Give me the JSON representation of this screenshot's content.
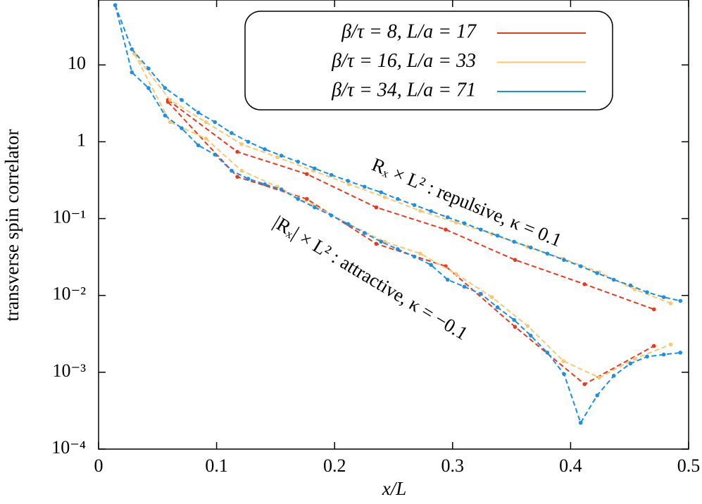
{
  "chart_data": {
    "type": "line",
    "log_y": true,
    "xlabel": "x/L",
    "ylabel": "transverse spin correlator",
    "xlim": [
      0,
      0.5
    ],
    "xticks": [
      0,
      0.1,
      0.2,
      0.3,
      0.4,
      0.5
    ],
    "ylim": [
      0.0001,
      70
    ],
    "yticks": [
      {
        "value": 0.0001,
        "label": "10⁻⁴"
      },
      {
        "value": 0.001,
        "label": "10⁻³"
      },
      {
        "value": 0.01,
        "label": "10⁻²"
      },
      {
        "value": 0.1,
        "label": "10⁻¹"
      },
      1,
      10
    ],
    "legend": "top-center",
    "annotations": [
      "Rₓ × L² : repulsive,   κ = 0.1",
      "|Rₓ| × L² : attractive,   κ = −0.1"
    ],
    "series": [
      {
        "name": "β/τ = 8,   L/a = 17",
        "color": "#e8391f",
        "repulsive": {
          "x": [
            0.0588,
            0.1176,
            0.1765,
            0.2353,
            0.2941,
            0.3529,
            0.4118,
            0.4706
          ],
          "values": [
            3.5,
            0.74,
            0.38,
            0.14,
            0.072,
            0.029,
            0.014,
            0.0066
          ]
        },
        "attractive": {
          "x": [
            0.0588,
            0.1176,
            0.1765,
            0.2353,
            0.2941,
            0.3529,
            0.4118,
            0.4706
          ],
          "values": [
            3.3,
            0.35,
            0.18,
            0.047,
            0.024,
            0.0039,
            0.0007,
            0.0022
          ]
        }
      },
      {
        "name": "β/τ = 16,   L/a = 33",
        "color": "#f7c873",
        "repulsive": {
          "x": [
            0.0303,
            0.0606,
            0.0909,
            0.1212,
            0.1515,
            0.1818,
            0.2121,
            0.2424,
            0.2727,
            0.303,
            0.3333,
            0.3636,
            0.3939,
            0.4242,
            0.4545,
            0.4848
          ],
          "values": [
            14,
            3.5,
            1.8,
            0.93,
            0.63,
            0.42,
            0.28,
            0.19,
            0.126,
            0.089,
            0.063,
            0.043,
            0.03,
            0.02,
            0.012,
            0.0079
          ]
        },
        "attractive": {
          "x": [
            0.0303,
            0.0606,
            0.0909,
            0.1212,
            0.1515,
            0.1818,
            0.2121,
            0.2424,
            0.2727,
            0.303,
            0.3333,
            0.3636,
            0.3939,
            0.4242,
            0.4545,
            0.4848
          ],
          "values": [
            14,
            1.8,
            1.1,
            0.42,
            0.26,
            0.15,
            0.085,
            0.05,
            0.035,
            0.019,
            0.0095,
            0.004,
            0.0014,
            0.00085,
            0.0015,
            0.0023
          ]
        }
      },
      {
        "name": "β/τ = 34,   L/a = 71",
        "color": "#1a8fe3",
        "repulsive": {
          "x": [
            0.0141,
            0.0282,
            0.0423,
            0.0563,
            0.0704,
            0.0845,
            0.0986,
            0.1127,
            0.1268,
            0.1408,
            0.1549,
            0.169,
            0.1831,
            0.1972,
            0.2113,
            0.2254,
            0.2394,
            0.2535,
            0.2676,
            0.2817,
            0.2958,
            0.3099,
            0.3239,
            0.338,
            0.3521,
            0.3662,
            0.3803,
            0.3944,
            0.4085,
            0.4225,
            0.4366,
            0.4507,
            0.4648,
            0.4789,
            0.493
          ],
          "values": [
            60,
            16,
            9,
            5,
            3.5,
            2.4,
            1.8,
            1.3,
            1.0,
            0.8,
            0.66,
            0.55,
            0.45,
            0.37,
            0.31,
            0.26,
            0.22,
            0.18,
            0.15,
            0.125,
            0.104,
            0.087,
            0.072,
            0.06,
            0.05,
            0.042,
            0.035,
            0.029,
            0.024,
            0.0195,
            0.016,
            0.0135,
            0.011,
            0.0095,
            0.0085
          ]
        },
        "attractive": {
          "x": [
            0.0141,
            0.0282,
            0.0423,
            0.0563,
            0.0704,
            0.0845,
            0.0986,
            0.1127,
            0.1268,
            0.1408,
            0.1549,
            0.169,
            0.1831,
            0.1972,
            0.2113,
            0.2254,
            0.2394,
            0.2535,
            0.2676,
            0.2817,
            0.2958,
            0.3099,
            0.3239,
            0.338,
            0.3521,
            0.3662,
            0.3803,
            0.3944,
            0.4085,
            0.4225,
            0.4366,
            0.4507,
            0.4648,
            0.4789,
            0.493
          ],
          "values": [
            60,
            8,
            5,
            2.2,
            1.5,
            0.9,
            0.68,
            0.42,
            0.33,
            0.28,
            0.24,
            0.18,
            0.14,
            0.11,
            0.085,
            0.065,
            0.05,
            0.04,
            0.032,
            0.025,
            0.016,
            0.013,
            0.0105,
            0.007,
            0.0048,
            0.003,
            0.0018,
            0.00095,
            0.00022,
            0.0005,
            0.0009,
            0.0013,
            0.0016,
            0.0017,
            0.0018
          ]
        }
      }
    ]
  }
}
